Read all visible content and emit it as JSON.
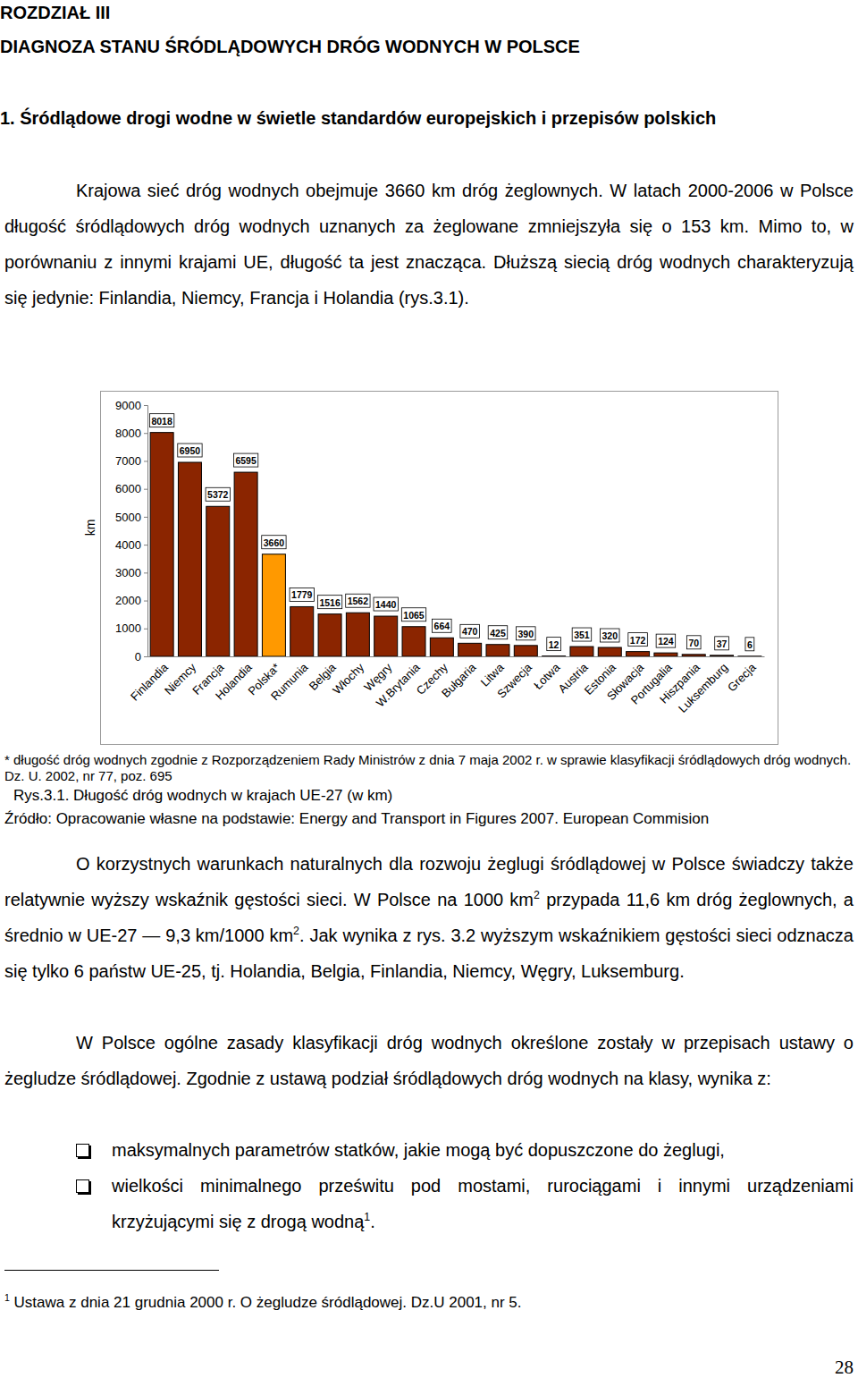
{
  "document": {
    "chapter": "ROZDZIAŁ III",
    "chapter_title": "DIAGNOZA STANU ŚRÓDLĄDOWYCH DRÓG WODNYCH W POLSCE",
    "section_title": "1. Śródlądowe drogi wodne w świetle standardów europejskich i przepisów polskich",
    "paragraphs": [
      [
        {
          "text": "Krajowa sieć dróg wodnych obejmuje 3660 km dróg żeglownych. W latach 2000-2006 w Polsce długość śródlądowych dróg wodnych uznanych za żeglowane zmniejszyła się o 153 km. Mimo to, w porównaniu z innymi krajami UE, długość ta jest znacząca. Dłuższą siecią dróg wodnych charakteryzują się jedynie: Finlandia, Niemcy, Francja i Holandia (rys.3.1)."
        }
      ],
      [
        {
          "text": "O korzystnych warunkach naturalnych dla rozwoju żeglugi śródlądowej w Polsce świadczy także relatywnie wyższy wskaźnik gęstości sieci. W Polsce na 1000 km"
        },
        {
          "sup": "2"
        },
        {
          "text": " przypada 11,6 km dróg żeglownych, a średnio w UE-27 — 9,3 km/1000 km"
        },
        {
          "sup": "2"
        },
        {
          "text": ". Jak wynika z rys. 3.2 wyższym wskaźnikiem gęstości sieci odznacza się tylko 6 państw UE-25, tj. Holandia, Belgia, Finlandia, Niemcy, Węgry, Luksemburg."
        }
      ],
      [
        {
          "text": "W Polsce ogólne zasady klasyfikacji dróg wodnych określone zostały w przepisach ustawy o żegludze śródlądowej. Zgodnie z ustawą podział śródlądowych dróg wodnych na klasy, wynika z:"
        }
      ]
    ],
    "bullets": [
      [
        {
          "text": "maksymalnych parametrów statków, jakie mogą być dopuszczone do żeglugi,"
        }
      ],
      [
        {
          "text": "wielkości minimalnego prześwitu pod mostami, rurociągami i innymi urządzeniami krzyżującymi się z drogą wodną"
        },
        {
          "sup": "1"
        },
        {
          "text": "."
        }
      ]
    ],
    "chart_footnote": "* długość dróg wodnych zgodnie z Rozporządzeniem Rady Ministrów z dnia 7 maja 2002 r. w sprawie klasyfikacji śródlądowych dróg wodnych. Dz. U. 2002, nr 77, poz. 695",
    "source": "Źródło: Opracowanie własne na podstawie: Energy and Transport in Figures 2007. European Commision",
    "footnote": [
      {
        "sup": "1"
      },
      {
        "text": " Ustawa z dnia 21 grudnia 2000 r. O żegludze śródlądowej. Dz.U 2001, nr 5."
      }
    ],
    "page_number": "28"
  },
  "chart_data": {
    "type": "bar",
    "title": "Rys.3.1. Długość dróg wodnych w krajach UE-27 (w km)",
    "y_label": "km",
    "categories": [
      "Finlandia",
      "Niemcy",
      "Francja",
      "Holandia",
      "Polska*",
      "Rumunia",
      "Belgia",
      "Włochy",
      "Węgry",
      "W.Brytania",
      "Czechy",
      "Bułgaria",
      "Litwa",
      "Szwecja",
      "Łotwa",
      "Austria",
      "Estonia",
      "Słowacja",
      "Portugalia",
      "Hiszpania",
      "Luksemburg",
      "Grecja"
    ],
    "values": [
      8018,
      6950,
      5372,
      6595,
      3660,
      1779,
      1516,
      1562,
      1440,
      1065,
      664,
      470,
      425,
      390,
      12,
      351,
      320,
      172,
      124,
      70,
      37,
      6
    ],
    "colors": [
      "#8b2500",
      "#8b2500",
      "#8b2500",
      "#8b2500",
      "#ff9900",
      "#8b2500",
      "#8b2500",
      "#8b2500",
      "#8b2500",
      "#8b2500",
      "#8b2500",
      "#8b2500",
      "#8b2500",
      "#8b2500",
      "#8b2500",
      "#8b2500",
      "#8b2500",
      "#8b2500",
      "#8b2500",
      "#8b2500",
      "#8b2500",
      "#8b2500"
    ],
    "ylim": [
      0,
      9000
    ],
    "yticks": [
      0,
      1000,
      2000,
      3000,
      4000,
      5000,
      6000,
      7000,
      8000,
      9000
    ],
    "data_labels": true,
    "grid": false
  }
}
